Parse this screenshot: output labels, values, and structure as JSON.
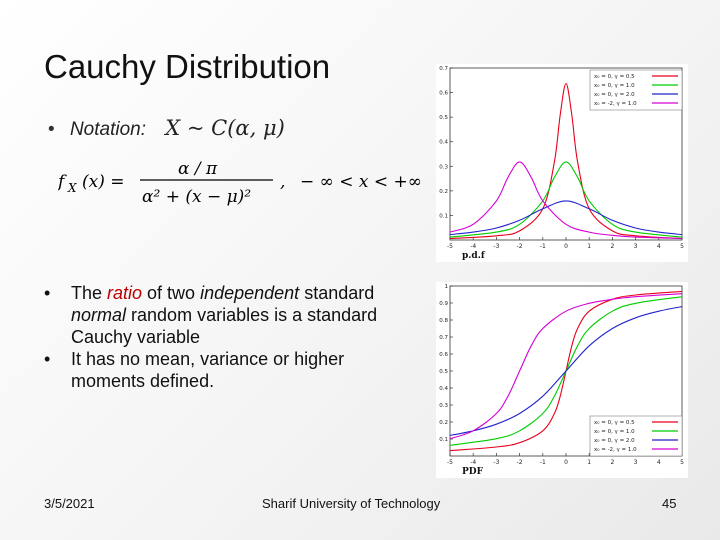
{
  "slide": {
    "title": "Cauchy Distribution",
    "notation_bullet": "•",
    "notation_label": "Notation:",
    "notation_math": "X ~ C(α, μ)",
    "formula": {
      "lhs": "f",
      "lhs_sub": "X",
      "lhs_arg": "(x) =",
      "numerator": "α / π",
      "denominator": "α² + (x − μ)²",
      "comma": ",",
      "range": "− ∞  <  x  <  +∞"
    },
    "bullets": [
      {
        "bullet": "•",
        "parts": [
          "The ",
          "ratio",
          " of two ",
          "independent",
          " standard ",
          "normal",
          " random variables is a standard Cauchy variable"
        ]
      },
      {
        "bullet": "•",
        "text": "It has no mean, variance or higher moments defined."
      }
    ],
    "footer": {
      "date": "3/5/2021",
      "org": "Sharif University of Technology",
      "page": "45"
    }
  },
  "chart_data": [
    {
      "type": "line",
      "caption": "p.d.f",
      "xlim": [
        -5,
        5
      ],
      "ylim": [
        0,
        0.7
      ],
      "xticks": [
        "-5",
        "-4",
        "-3",
        "-2",
        "-1",
        "0",
        "1",
        "2",
        "3",
        "4",
        "5"
      ],
      "yticks": [
        "0.1",
        "0.2",
        "0.3",
        "0.4",
        "0.5",
        "0.6",
        "0.7"
      ],
      "legend_position": "top-right",
      "series": [
        {
          "name": "x₀ = 0, γ = 0.5",
          "color": "#e8001c",
          "x": [
            -5,
            -3,
            -2,
            -1,
            -0.5,
            -0.25,
            0,
            0.25,
            0.5,
            1,
            2,
            3,
            5
          ],
          "y": [
            0.006,
            0.017,
            0.037,
            0.127,
            0.318,
            0.509,
            0.637,
            0.509,
            0.318,
            0.127,
            0.037,
            0.017,
            0.006
          ]
        },
        {
          "name": "x₀ = 0, γ = 1.0",
          "color": "#00cc00",
          "x": [
            -5,
            -3,
            -2,
            -1,
            -0.5,
            0,
            0.5,
            1,
            2,
            3,
            5
          ],
          "y": [
            0.012,
            0.032,
            0.064,
            0.159,
            0.255,
            0.318,
            0.255,
            0.159,
            0.064,
            0.032,
            0.012
          ]
        },
        {
          "name": "x₀ = 0, γ = 2.0",
          "color": "#2222cc",
          "x": [
            -5,
            -4,
            -3,
            -2,
            -1,
            0,
            1,
            2,
            3,
            4,
            5
          ],
          "y": [
            0.022,
            0.032,
            0.049,
            0.08,
            0.127,
            0.159,
            0.127,
            0.08,
            0.049,
            0.032,
            0.022
          ]
        },
        {
          "name": "x₀ = -2, γ = 1.0",
          "color": "#d400d4",
          "x": [
            -5,
            -4,
            -3,
            -2.5,
            -2,
            -1.5,
            -1,
            0,
            1,
            2,
            3,
            5
          ],
          "y": [
            0.032,
            0.064,
            0.159,
            0.255,
            0.318,
            0.255,
            0.159,
            0.064,
            0.032,
            0.019,
            0.012,
            0.006
          ]
        }
      ]
    },
    {
      "type": "line",
      "caption": "PDF",
      "xlim": [
        -5,
        5
      ],
      "ylim": [
        0,
        1
      ],
      "xticks": [
        "-5",
        "-4",
        "-3",
        "-2",
        "-1",
        "0",
        "1",
        "2",
        "3",
        "4",
        "5"
      ],
      "yticks": [
        "0.1",
        "0.2",
        "0.3",
        "0.4",
        "0.5",
        "0.6",
        "0.7",
        "0.8",
        "0.9",
        "1"
      ],
      "legend_position": "bottom-right",
      "series": [
        {
          "name": "x₀ = 0, γ = 0.5",
          "color": "#e8001c",
          "x": [
            -5,
            -3,
            -2,
            -1,
            -0.5,
            -0.25,
            0,
            0.25,
            0.5,
            1,
            2,
            3,
            5
          ],
          "y": [
            0.032,
            0.053,
            0.078,
            0.148,
            0.25,
            0.352,
            0.5,
            0.648,
            0.75,
            0.852,
            0.922,
            0.947,
            0.968
          ]
        },
        {
          "name": "x₀ = 0, γ = 1.0",
          "color": "#00cc00",
          "x": [
            -5,
            -3,
            -2,
            -1,
            -0.5,
            0,
            0.5,
            1,
            2,
            3,
            5
          ],
          "y": [
            0.063,
            0.102,
            0.148,
            0.25,
            0.352,
            0.5,
            0.648,
            0.75,
            0.852,
            0.898,
            0.937
          ]
        },
        {
          "name": "x₀ = 0, γ = 2.0",
          "color": "#2222cc",
          "x": [
            -5,
            -4,
            -3,
            -2,
            -1,
            0,
            1,
            2,
            3,
            4,
            5
          ],
          "y": [
            0.121,
            0.148,
            0.187,
            0.25,
            0.352,
            0.5,
            0.648,
            0.75,
            0.813,
            0.852,
            0.879
          ]
        },
        {
          "name": "x₀ = -2, γ = 1.0",
          "color": "#d400d4",
          "x": [
            -5,
            -4,
            -3,
            -2.5,
            -2,
            -1.5,
            -1,
            0,
            1,
            2,
            3,
            5
          ],
          "y": [
            0.102,
            0.148,
            0.25,
            0.352,
            0.5,
            0.648,
            0.75,
            0.852,
            0.898,
            0.922,
            0.937,
            0.955
          ]
        }
      ]
    }
  ]
}
